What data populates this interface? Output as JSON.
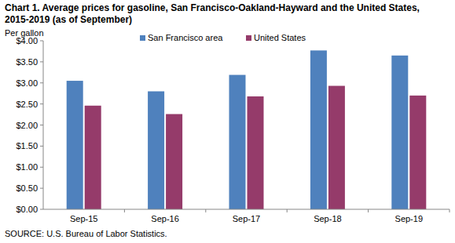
{
  "chart_data": {
    "type": "bar",
    "title": "Chart 1. Average prices for gasoline, San Francisco-Oakland-Hayward and the United States, 2015-2019  (as of September)",
    "y_label": "Per gallon",
    "source": "SOURCE: U.S. Bureau of Labor Statistics.",
    "categories": [
      "Sep-15",
      "Sep-16",
      "Sep-17",
      "Sep-18",
      "Sep-19"
    ],
    "series": [
      {
        "name": "San Francisco area",
        "color": "#4f81bd",
        "values": [
          3.05,
          2.8,
          3.19,
          3.77,
          3.65
        ]
      },
      {
        "name": "United States",
        "color": "#953b6a",
        "values": [
          2.46,
          2.26,
          2.68,
          2.93,
          2.7
        ]
      }
    ],
    "ylim": [
      0,
      4
    ],
    "yticks": [
      {
        "value": 0,
        "label": "$0.00"
      },
      {
        "value": 0.5,
        "label": "$0.50"
      },
      {
        "value": 1,
        "label": "$1.00"
      },
      {
        "value": 1.5,
        "label": "$1.50"
      },
      {
        "value": 2,
        "label": "$2.00"
      },
      {
        "value": 2.5,
        "label": "$2.50"
      },
      {
        "value": 3,
        "label": "$3.00"
      },
      {
        "value": 3.5,
        "label": "$3.50"
      },
      {
        "value": 4,
        "label": "$4.00"
      }
    ],
    "grid": false,
    "legend": "top"
  }
}
